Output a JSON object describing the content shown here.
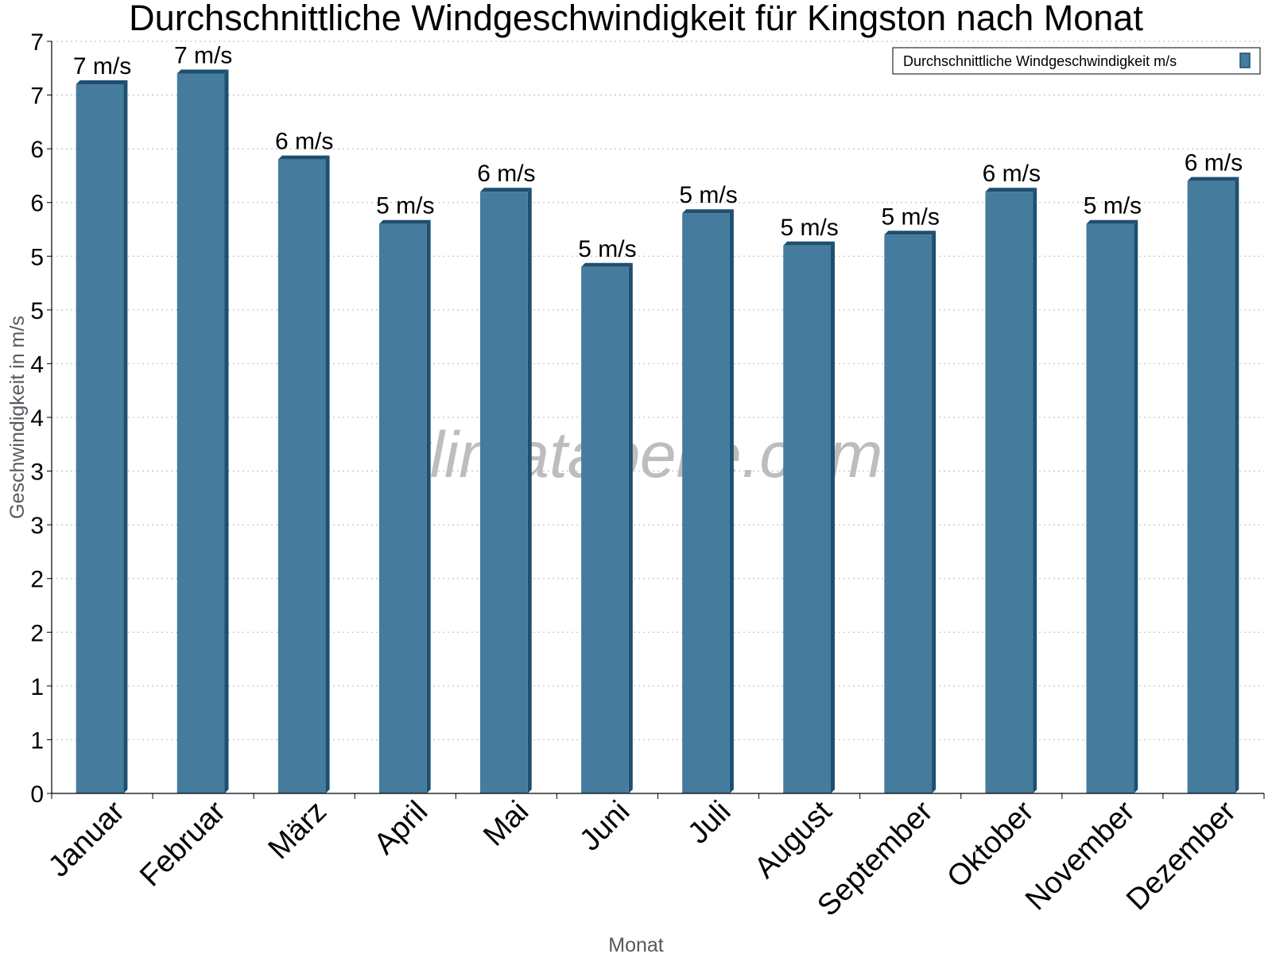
{
  "chart_data": {
    "type": "bar",
    "title": "Durchschnittliche Windgeschwindigkeit für Kingston nach Monat",
    "xlabel": "Monat",
    "ylabel": "Geschwindigkeit in m/s",
    "categories": [
      "Januar",
      "Februar",
      "März",
      "April",
      "Mai",
      "Juni",
      "Juli",
      "August",
      "September",
      "Oktober",
      "November",
      "Dezember"
    ],
    "series": [
      {
        "name": "Durchschnittliche Windgeschwindigkeit m/s",
        "values": [
          6.6,
          6.7,
          5.9,
          5.3,
          5.6,
          4.9,
          5.4,
          5.1,
          5.2,
          5.6,
          5.3,
          5.7
        ],
        "labels": [
          "7 m/s",
          "7 m/s",
          "6 m/s",
          "5 m/s",
          "6 m/s",
          "5 m/s",
          "5 m/s",
          "5 m/s",
          "5 m/s",
          "6 m/s",
          "5 m/s",
          "6 m/s"
        ],
        "color": "#457b9d"
      }
    ],
    "ylim": [
      0,
      7
    ],
    "yticks": [
      0,
      0.5,
      1,
      1.5,
      2,
      2.5,
      3,
      3.5,
      4,
      4.5,
      5,
      5.5,
      6,
      6.5,
      7
    ],
    "ytick_labels": [
      "0",
      "1",
      "1",
      "2",
      "2",
      "3",
      "3",
      "4",
      "4",
      "5",
      "5",
      "6",
      "6",
      "7",
      "7"
    ],
    "grid": true,
    "legend_position": "top-right",
    "bar_side_color": "#1d4f70",
    "watermark": "klimatabelle.com"
  }
}
